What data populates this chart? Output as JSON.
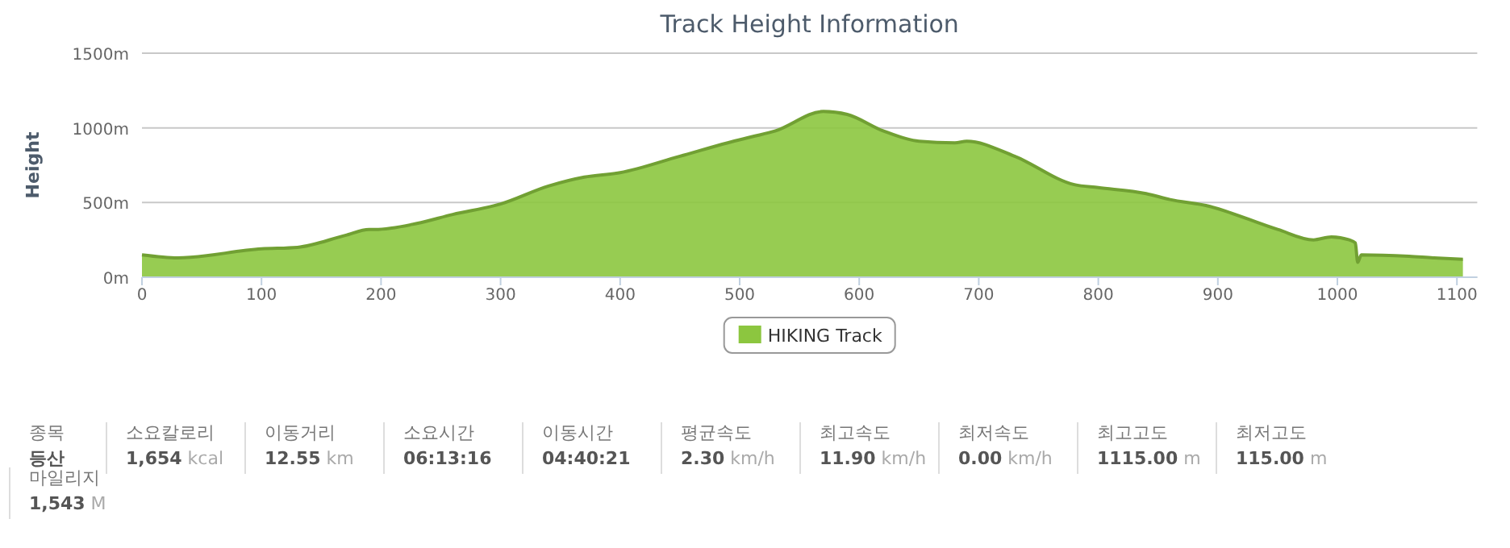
{
  "chart_data": [
    {
      "type": "area",
      "title": "Track Height Information",
      "ylabel": "Height",
      "series": [
        {
          "name": "HIKING Track",
          "color": "#8cc63f",
          "x": [
            0,
            30,
            100,
            130,
            170,
            190,
            195,
            230,
            260,
            300,
            340,
            370,
            400,
            450,
            490,
            510,
            530,
            570,
            590,
            620,
            650,
            680,
            690,
            730,
            780,
            800,
            840,
            860,
            890,
            950,
            980,
            995,
            1010,
            1015,
            1017,
            1020,
            1060,
            1080,
            1105
          ],
          "values": [
            150,
            130,
            190,
            200,
            280,
            320,
            320,
            360,
            420,
            490,
            610,
            670,
            700,
            810,
            900,
            940,
            980,
            1110,
            1090,
            980,
            910,
            900,
            910,
            810,
            620,
            600,
            560,
            520,
            480,
            320,
            250,
            270,
            250,
            230,
            100,
            150,
            140,
            130,
            120
          ]
        }
      ],
      "xlim": [
        0,
        1117
      ],
      "xticks": [
        0,
        100,
        200,
        300,
        400,
        500,
        600,
        700,
        800,
        900,
        1000,
        1100
      ],
      "ylim": [
        0,
        1500
      ],
      "yticks": [
        {
          "value": 0,
          "label": "0m"
        },
        {
          "value": 500,
          "label": "500m"
        },
        {
          "value": 1000,
          "label": "1000m"
        },
        {
          "value": 1500,
          "label": "1500m"
        }
      ],
      "grid": "y",
      "legend": "bottom"
    },
    {
      "type": "other",
      "categories": [
        "종목",
        "소요칼로리",
        "이동거리",
        "소요시간",
        "이동시간",
        "평균속도",
        "최고속도",
        "최저속도",
        "최고고도",
        "최저고도",
        "마일리지"
      ],
      "value_labels": [
        "등산",
        "1,654 kcal",
        "12.55 km",
        "06:13:16",
        "04:40:21",
        "2.30 km/h",
        "11.90 km/h",
        "0.00 km/h",
        "1115.00 m",
        "115.00 m",
        "1,543 M"
      ]
    }
  ]
}
